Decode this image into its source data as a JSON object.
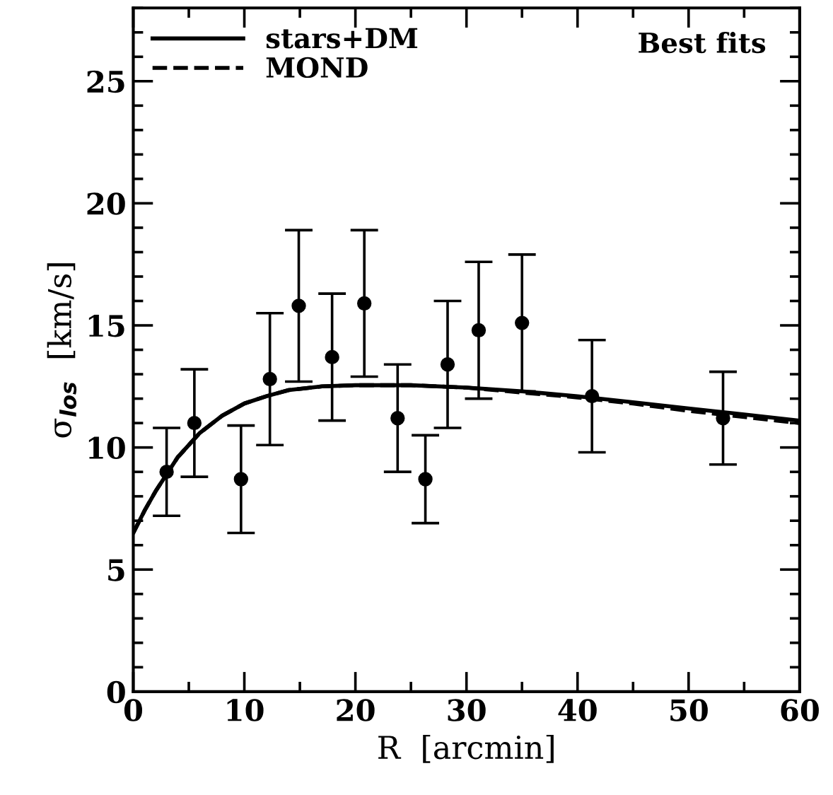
{
  "chart_data": {
    "type": "scatter",
    "xlabel": "R  [arcmin]",
    "ylabel": "σ$_{los}$  [km/s]",
    "xlim": [
      0,
      60
    ],
    "ylim": [
      0,
      28
    ],
    "xticks": [
      0,
      10,
      20,
      30,
      40,
      50,
      60
    ],
    "yticks": [
      0,
      5,
      10,
      15,
      20,
      25
    ],
    "grid": false,
    "legend": "top left",
    "annotations": [
      "Best fits"
    ],
    "series": [
      {
        "color": "#000000",
        "marker": "circle",
        "x": [
          3.0,
          5.5,
          9.7,
          12.3,
          14.9,
          17.9,
          20.8,
          23.8,
          26.3,
          28.3,
          31.1,
          35.0,
          41.3,
          53.1
        ],
        "values": [
          9.0,
          11.0,
          8.7,
          12.8,
          15.8,
          13.7,
          15.9,
          11.2,
          8.7,
          13.4,
          14.8,
          15.1,
          12.1,
          11.2
        ],
        "errors": [
          [
            7.2,
            10.8
          ],
          [
            8.8,
            13.2
          ],
          [
            6.5,
            10.9
          ],
          [
            10.1,
            15.5
          ],
          [
            12.7,
            18.9
          ],
          [
            11.1,
            16.3
          ],
          [
            12.9,
            18.9
          ],
          [
            9.0,
            13.4
          ],
          [
            6.9,
            10.5
          ],
          [
            10.8,
            16.0
          ],
          [
            12.0,
            17.6
          ],
          [
            12.3,
            17.9
          ],
          [
            9.8,
            14.4
          ],
          [
            9.3,
            13.1
          ]
        ]
      },
      {
        "type": "line",
        "name": "stars+DM",
        "color": "#000000",
        "line_style": "solid",
        "x": [
          0,
          1,
          2,
          3,
          4,
          6,
          8,
          10,
          12,
          14,
          17,
          20,
          25,
          30,
          35,
          40,
          45,
          50,
          55,
          60
        ],
        "values": [
          6.5,
          7.4,
          8.2,
          8.9,
          9.6,
          10.6,
          11.3,
          11.8,
          12.1,
          12.35,
          12.5,
          12.55,
          12.55,
          12.45,
          12.3,
          12.1,
          11.85,
          11.6,
          11.35,
          11.1
        ]
      },
      {
        "type": "line",
        "name": "MOND",
        "color": "#000000",
        "line_style": "dashed",
        "x": [
          0,
          1,
          2,
          3,
          4,
          6,
          8,
          10,
          12,
          14,
          17,
          20,
          25,
          30,
          35,
          40,
          45,
          50,
          55,
          60
        ],
        "values": [
          6.5,
          7.4,
          8.2,
          8.9,
          9.6,
          10.6,
          11.3,
          11.8,
          12.1,
          12.35,
          12.5,
          12.55,
          12.55,
          12.45,
          12.25,
          12.05,
          11.8,
          11.5,
          11.25,
          11.0
        ]
      }
    ]
  }
}
